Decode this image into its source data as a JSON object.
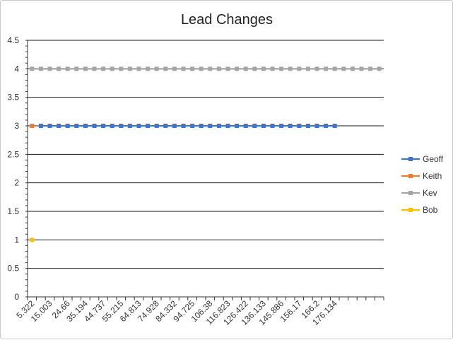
{
  "chart_data": {
    "type": "line",
    "title": "Lead Changes",
    "xlabel": "",
    "ylabel": "",
    "ylim": [
      0,
      4.5
    ],
    "y_ticks": [
      "0",
      "0.5",
      "1",
      "1.5",
      "2",
      "2.5",
      "3",
      "3.5",
      "4",
      "4.5"
    ],
    "x_tick_labels": [
      "5.322",
      "15.003",
      "24.66",
      "35.194",
      "44.737",
      "55.215",
      "64.813",
      "74.928",
      "84.332",
      "94.725",
      "106.38",
      "116.823",
      "126.422",
      "136.133",
      "145.886",
      "156.17",
      "166.2",
      "176.134"
    ],
    "category_count": 40,
    "grid": "horizontal",
    "legend_position": "right",
    "series": [
      {
        "name": "Geoff",
        "color": "#4472C4",
        "start_index": 1,
        "end_index": 34,
        "value": 3
      },
      {
        "name": "Keith",
        "color": "#ED7D31",
        "start_index": 0,
        "end_index": 0,
        "value": 3
      },
      {
        "name": "Kev",
        "color": "#A5A5A5",
        "start_index": 0,
        "end_index": 39,
        "value": 4
      },
      {
        "name": "Bob",
        "color": "#FFC000",
        "start_index": 0,
        "end_index": 0,
        "value": 1
      }
    ]
  }
}
